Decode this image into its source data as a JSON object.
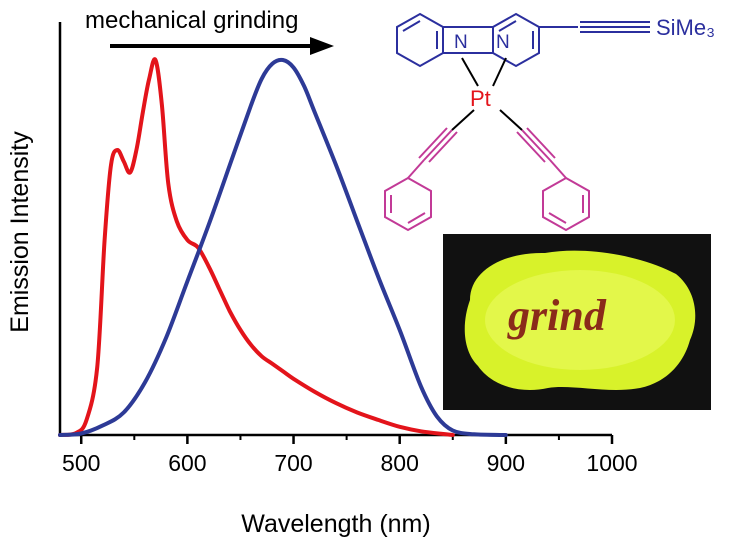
{
  "colors": {
    "red_series": "#e3141b",
    "blue_series": "#2d3a96",
    "structure_blue": "#2b2f9e",
    "structure_red": "#e3141b",
    "structure_pink": "#c23a97",
    "photo_background": "#111111",
    "photo_glow": "#d8f22a"
  },
  "annotation": {
    "text": "mechanical grinding"
  },
  "structure": {
    "metal": "Pt",
    "n1": "N",
    "n2": "N",
    "substituent": "SiMe₃"
  },
  "photo": {
    "word": "grind"
  },
  "chart_data": {
    "type": "line",
    "title": "",
    "xlabel": "Wavelength (nm)",
    "ylabel": "Emission Intensity",
    "xlim": [
      480,
      1000
    ],
    "ylim": [
      0,
      1.0
    ],
    "xticks": [
      500,
      600,
      700,
      800,
      900,
      1000
    ],
    "xtick_labels": [
      "500",
      "600",
      "700",
      "800",
      "900",
      "1000"
    ],
    "y_tick_labels": false,
    "grid": false,
    "series": [
      {
        "color": "#e3141b",
        "x": [
          480,
          495,
          505,
          515,
          522,
          528,
          534,
          540,
          546,
          552,
          558,
          564,
          570,
          576,
          582,
          590,
          600,
          610,
          620,
          630,
          640,
          650,
          660,
          670,
          680,
          690,
          700,
          720,
          740,
          760,
          780,
          800,
          820,
          840,
          850
        ],
        "y": [
          0.0,
          0.005,
          0.04,
          0.18,
          0.52,
          0.72,
          0.76,
          0.73,
          0.7,
          0.76,
          0.86,
          0.95,
          1.0,
          0.88,
          0.67,
          0.57,
          0.52,
          0.5,
          0.45,
          0.39,
          0.33,
          0.28,
          0.24,
          0.21,
          0.19,
          0.17,
          0.15,
          0.115,
          0.085,
          0.06,
          0.04,
          0.022,
          0.01,
          0.003,
          0.0
        ]
      },
      {
        "color": "#2d3a96",
        "x": [
          480,
          500,
          520,
          540,
          560,
          580,
          600,
          620,
          640,
          660,
          670,
          680,
          690,
          700,
          710,
          720,
          740,
          760,
          780,
          800,
          820,
          835,
          850,
          870,
          900
        ],
        "y": [
          0.0,
          0.004,
          0.025,
          0.06,
          0.14,
          0.26,
          0.41,
          0.56,
          0.72,
          0.88,
          0.95,
          0.99,
          1.0,
          0.98,
          0.93,
          0.86,
          0.72,
          0.57,
          0.42,
          0.28,
          0.13,
          0.05,
          0.012,
          0.002,
          0.0
        ]
      }
    ]
  }
}
